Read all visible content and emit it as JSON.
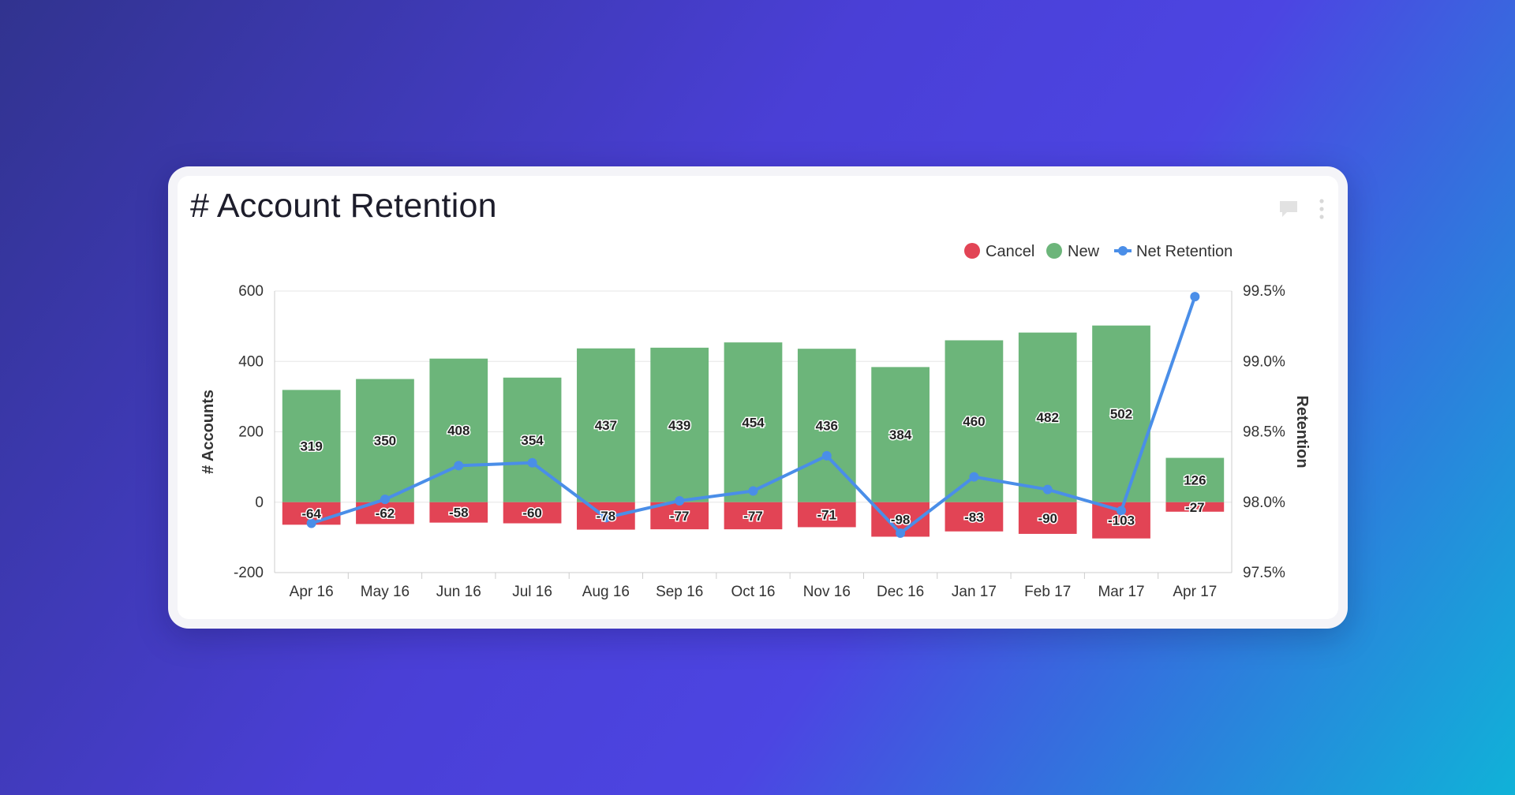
{
  "card": {
    "title": "# Account Retention",
    "comment_icon": "comment-icon",
    "more_icon": "more-vertical-icon"
  },
  "colors": {
    "cancel": "#e24455",
    "new": "#6cb57a",
    "net_retention": "#4a8ee8",
    "grid": "#e6e6e6",
    "axis": "#cccccc"
  },
  "chart_data": {
    "type": "bar",
    "stacked": true,
    "title": "# Account Retention",
    "categories": [
      "Apr 16",
      "May 16",
      "Jun 16",
      "Jul 16",
      "Aug 16",
      "Sep 16",
      "Oct 16",
      "Nov 16",
      "Dec 16",
      "Jan 17",
      "Feb 17",
      "Mar 17",
      "Apr 17"
    ],
    "series": [
      {
        "name": "Cancel",
        "type": "bar",
        "axis": "left",
        "values": [
          -64,
          -62,
          -58,
          -60,
          -78,
          -77,
          -77,
          -71,
          -98,
          -83,
          -90,
          -103,
          -27
        ]
      },
      {
        "name": "New",
        "type": "bar",
        "axis": "left",
        "values": [
          319,
          350,
          408,
          354,
          437,
          439,
          454,
          436,
          384,
          460,
          482,
          502,
          126
        ]
      },
      {
        "name": "Net Retention",
        "type": "line",
        "axis": "right",
        "values": [
          97.85,
          98.02,
          98.26,
          98.28,
          97.89,
          98.01,
          98.08,
          98.33,
          97.78,
          98.18,
          98.09,
          97.94,
          99.46
        ]
      }
    ],
    "ylabel": "# Accounts",
    "y2label": "Retention",
    "ylim": [
      -200,
      600
    ],
    "yticks": [
      "600",
      "400",
      "200",
      "0",
      "-200"
    ],
    "ytick_values": [
      600,
      400,
      200,
      0,
      -200
    ],
    "y2lim": [
      97.5,
      99.5
    ],
    "y2ticks": [
      "99.5%",
      "99.0%",
      "98.5%",
      "98.0%",
      "97.5%"
    ],
    "y2tick_values": [
      99.5,
      99.0,
      98.5,
      98.0,
      97.5
    ],
    "grid": true,
    "legend_position": "top-right",
    "legend": [
      "Cancel",
      "New",
      "Net Retention"
    ]
  }
}
